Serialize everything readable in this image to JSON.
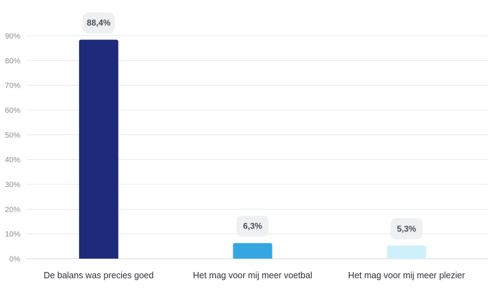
{
  "chart_data": {
    "type": "bar",
    "title": "",
    "xlabel": "",
    "ylabel": "",
    "ylim": [
      0,
      90
    ],
    "ytick_step": 10,
    "ytick_suffix": "%",
    "grid": true,
    "legend": "none",
    "categories": [
      "De balans was precies goed",
      "Het mag voor mij meer voetbal",
      "Het mag voor mij meer plezier"
    ],
    "values": [
      88.4,
      6.3,
      5.3
    ],
    "data_labels": [
      "88,4%",
      "6,3%",
      "5,3%"
    ],
    "colors": [
      "#1e2a7a",
      "#35a6e2",
      "#cdf0fa"
    ]
  }
}
